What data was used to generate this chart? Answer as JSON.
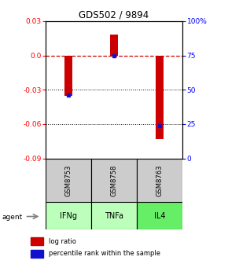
{
  "title": "GDS502 / 9894",
  "categories": [
    "GSM8753",
    "GSM8758",
    "GSM8763"
  ],
  "agents": [
    "IFNg",
    "TNFa",
    "IL4"
  ],
  "log_ratios": [
    -0.035,
    0.018,
    -0.073
  ],
  "percentile_ranks": [
    0.46,
    0.75,
    0.24
  ],
  "ylim": [
    -0.09,
    0.03
  ],
  "yticks_left": [
    0.03,
    0.0,
    -0.03,
    -0.06,
    -0.09
  ],
  "yticks_right": [
    100,
    75,
    50,
    25,
    0
  ],
  "bar_color": "#cc0000",
  "dot_color": "#1111cc",
  "grid_color": "#000000",
  "dashed_line_color": "#cc0000",
  "agent_colors": [
    "#bbffbb",
    "#bbffbb",
    "#66ee66"
  ],
  "sample_bg_color": "#cccccc",
  "legend_bar_color": "#cc0000",
  "legend_dot_color": "#1111cc",
  "bar_width": 0.18
}
